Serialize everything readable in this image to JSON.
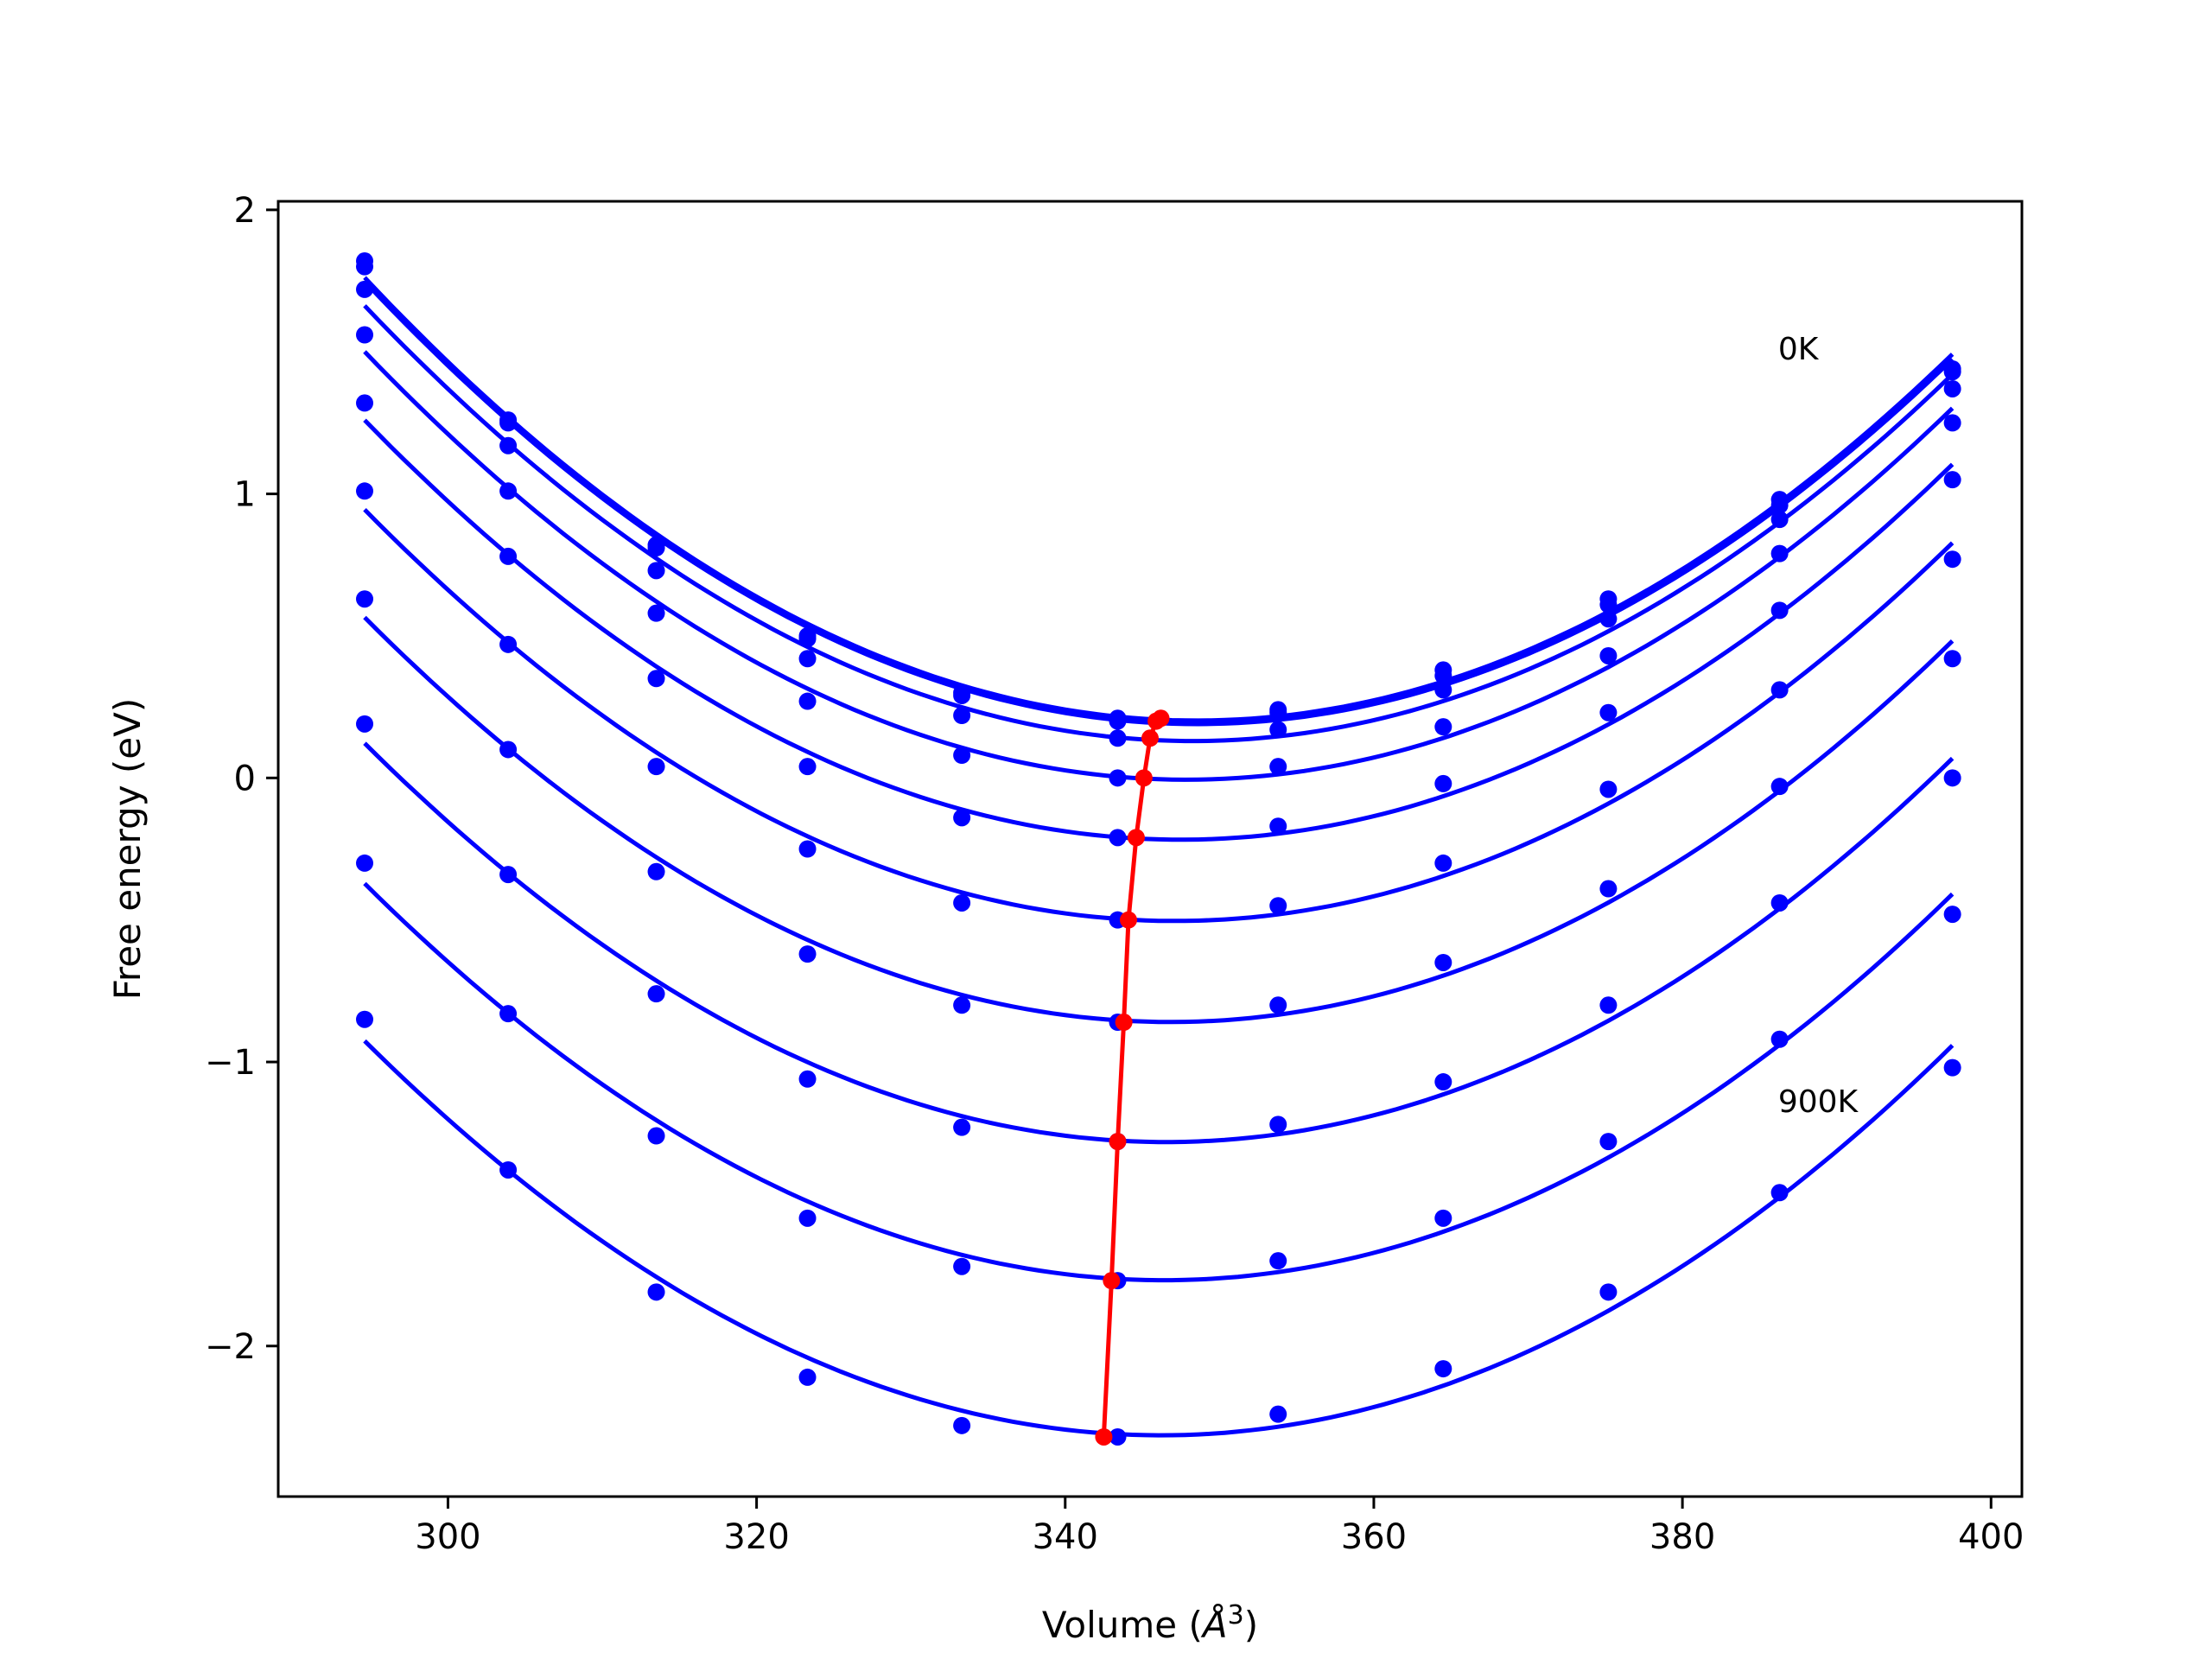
{
  "chart_data": {
    "type": "line",
    "title": "",
    "xlabel": "Volume (",
    "xlabel_unit": "Å",
    "xlabel_sup": "3",
    "xlabel_close": ")",
    "ylabel": "Free energy (eV)",
    "xlim": [
      289,
      402
    ],
    "ylim": [
      -2.53,
      2.03
    ],
    "xticks": [
      300,
      320,
      340,
      360,
      380,
      400
    ],
    "yticks": [
      2,
      1,
      0,
      -1,
      -2
    ],
    "ytick_labels": [
      "2",
      "1",
      "0",
      "−1",
      "−2"
    ],
    "grid": false,
    "legend": "none",
    "colors": {
      "curves": "#0000ff",
      "minima": "#ff0000"
    },
    "x": [
      294.6,
      303.9,
      313.5,
      323.3,
      333.3,
      343.4,
      353.8,
      364.5,
      375.2,
      386.3,
      397.5
    ],
    "series": [
      {
        "values": [
          1.82,
          1.26,
          0.82,
          0.5,
          0.3,
          0.21,
          0.24,
          0.38,
          0.63,
          0.98,
          1.44
        ]
      },
      {
        "values": [
          1.8,
          1.25,
          0.81,
          0.49,
          0.29,
          0.2,
          0.23,
          0.36,
          0.61,
          0.96,
          1.43
        ]
      },
      {
        "values": [
          1.72,
          1.17,
          0.73,
          0.42,
          0.22,
          0.14,
          0.17,
          0.31,
          0.56,
          0.91,
          1.37
        ]
      },
      {
        "values": [
          1.56,
          1.01,
          0.58,
          0.27,
          0.08,
          0.0,
          0.04,
          0.18,
          0.43,
          0.79,
          1.25
        ]
      },
      {
        "values": [
          1.32,
          0.78,
          0.35,
          0.04,
          -0.14,
          -0.21,
          -0.17,
          -0.02,
          0.23,
          0.59,
          1.05
        ]
      },
      {
        "values": [
          1.01,
          0.47,
          0.04,
          -0.25,
          -0.44,
          -0.5,
          -0.45,
          -0.3,
          -0.04,
          0.31,
          0.77
        ]
      },
      {
        "values": [
          0.63,
          0.1,
          -0.33,
          -0.62,
          -0.8,
          -0.86,
          -0.8,
          -0.65,
          -0.39,
          -0.03,
          0.42
        ]
      },
      {
        "values": [
          0.19,
          -0.34,
          -0.76,
          -1.06,
          -1.23,
          -1.28,
          -1.22,
          -1.07,
          -0.8,
          -0.44,
          0.0
        ]
      },
      {
        "values": [
          -0.3,
          -0.83,
          -1.26,
          -1.55,
          -1.72,
          -1.77,
          -1.7,
          -1.55,
          -1.28,
          -0.92,
          -0.48
        ]
      },
      {
        "values": [
          -0.85,
          -1.38,
          -1.81,
          -2.11,
          -2.28,
          -2.32,
          -2.24,
          -2.08,
          -1.81,
          -1.46,
          -1.02
        ]
      }
    ],
    "minima": {
      "x": [
        346.2,
        345.9,
        345.5,
        345.1,
        344.6,
        344.1,
        343.8,
        343.4,
        343.0,
        342.5
      ],
      "y": [
        0.21,
        0.2,
        0.14,
        0.0,
        -0.21,
        -0.5,
        -0.86,
        -1.28,
        -1.77,
        -2.32
      ]
    },
    "annotations": [
      {
        "text": "0K",
        "x": 386.2,
        "y": 1.51
      },
      {
        "text": "900K",
        "x": 386.2,
        "y": -1.14
      }
    ]
  }
}
